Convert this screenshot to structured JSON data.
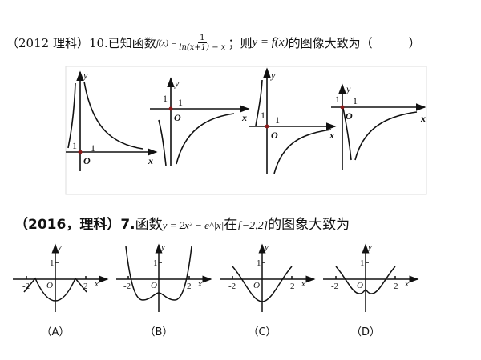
{
  "question1": {
    "prefix": "（2012 理科）10.已知函数",
    "func_lhs": "f(x) =",
    "numerator": "1",
    "denominator": "ln(x+1) − x",
    "suffix_a": "；则",
    "expr": "y = f(x)",
    "suffix_b": "的图像大致为（　　　）",
    "graph_labels": {
      "x": "x",
      "y": "y",
      "origin": "O",
      "one": "1"
    }
  },
  "question2": {
    "prefix": "（2016，理科）",
    "number": "7.",
    "text_a": "函数",
    "func": "y = 2x² − e^|x|",
    "text_b": "在",
    "interval": "[−2,2]",
    "text_c": "的图象大致为",
    "graph_labels": {
      "x": "x",
      "y": "y",
      "origin": "O",
      "one": "1",
      "neg_two": "-2",
      "two": "2"
    },
    "options": [
      "（A）",
      "（B）",
      "（C）",
      "（D）"
    ]
  },
  "colors": {
    "origin_dot": "#8b1a1a",
    "ink": "#111111",
    "frame": "#dddddd"
  }
}
